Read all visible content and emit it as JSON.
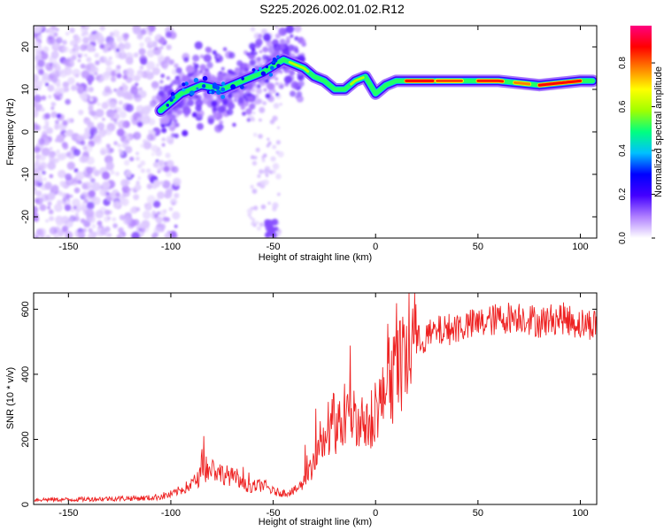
{
  "title": "S225.2026.002.01.02.R12",
  "chart_data": [
    {
      "type": "heatmap",
      "xlabel": "Height of straight line (km)",
      "ylabel": "Frequency (Hz)",
      "xlim": [
        -167,
        108
      ],
      "ylim": [
        -25,
        25
      ],
      "xticks": [
        -150,
        -100,
        -50,
        0,
        50,
        100
      ],
      "yticks": [
        -20,
        -10,
        0,
        10,
        20
      ],
      "colorbar": {
        "label": "Normalized spectral amplitude",
        "range": [
          0,
          0.97
        ],
        "ticks": [
          0.0,
          0.2,
          0.4,
          0.6,
          0.8
        ],
        "colors": [
          "#ffffff",
          "#b080ff",
          "#4400ff",
          "#0000ff",
          "#00c0ff",
          "#00ff80",
          "#a0ff00",
          "#ffff00",
          "#ff8000",
          "#ff0000",
          "#ff0080"
        ]
      },
      "ridge": {
        "x": [
          -105,
          -95,
          -85,
          -75,
          -65,
          -55,
          -45,
          -40,
          -35,
          -30,
          -25,
          -20,
          -15,
          -10,
          -5,
          0,
          5,
          10,
          20,
          40,
          60,
          80,
          100,
          106
        ],
        "y": [
          5,
          9,
          11,
          10,
          12,
          14,
          17,
          16,
          15,
          13,
          12,
          10,
          10,
          12,
          13,
          9,
          11,
          12,
          12,
          12,
          12,
          11,
          12,
          12
        ]
      },
      "noise_region_x": [
        -167,
        -105
      ]
    },
    {
      "type": "line",
      "xlabel": "Height of straight line (km)",
      "ylabel": "SNR (10 * v/v)",
      "xlim": [
        -167,
        108
      ],
      "ylim": [
        0,
        650
      ],
      "xticks": [
        -150,
        -100,
        -50,
        0,
        50,
        100
      ],
      "yticks": [
        0,
        200,
        400,
        600
      ],
      "color": "#ee2222",
      "series": [
        {
          "name": "SNR",
          "x": [
            -167,
            -150,
            -130,
            -110,
            -100,
            -90,
            -85,
            -80,
            -75,
            -70,
            -65,
            -60,
            -55,
            -50,
            -45,
            -40,
            -36,
            -33,
            -30,
            -25,
            -20,
            -15,
            -10,
            -5,
            0,
            5,
            10,
            15,
            20,
            30,
            40,
            50,
            60,
            70,
            80,
            90,
            100,
            108
          ],
          "values": [
            15,
            15,
            18,
            20,
            30,
            60,
            90,
            110,
            95,
            85,
            60,
            55,
            60,
            40,
            35,
            40,
            60,
            90,
            130,
            180,
            230,
            260,
            280,
            220,
            300,
            330,
            400,
            450,
            500,
            530,
            545,
            555,
            570,
            580,
            560,
            575,
            555,
            555
          ]
        }
      ]
    }
  ]
}
